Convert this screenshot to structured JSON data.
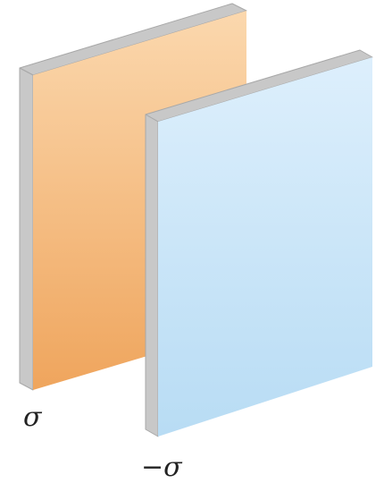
{
  "diagram": {
    "labels": {
      "positive": "σ",
      "negative": "−σ"
    },
    "plates": {
      "positive": {
        "gradient_top": "#fbd8ae",
        "gradient_bottom": "#efa55d",
        "edge": "#c8c8c8",
        "edge_dark": "#a8a8a8"
      },
      "negative": {
        "gradient_top": "#ddeffc",
        "gradient_bottom": "#b8dcf4",
        "edge": "#c8c8c8",
        "edge_dark": "#a8a8a8"
      }
    }
  }
}
